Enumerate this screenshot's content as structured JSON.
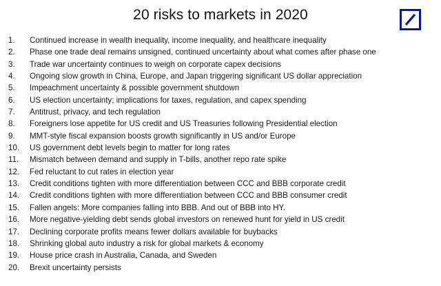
{
  "title": "20 risks to markets in 2020",
  "logo": {
    "icon": "deutsche-bank-logo",
    "color": "#0018a8"
  },
  "risks": [
    {
      "num": "1.",
      "text": "Continued increase in wealth inequality, income inequality, and healthcare inequality"
    },
    {
      "num": "2.",
      "text": "Phase one trade deal remains unsigned, continued uncertainty about what comes after phase one"
    },
    {
      "num": "3.",
      "text": "Trade war uncertainty continues to weigh on corporate capex decisions"
    },
    {
      "num": "4.",
      "text": "Ongoing slow growth in China, Europe, and Japan triggering significant US dollar appreciation"
    },
    {
      "num": "5.",
      "text": "Impeachment uncertainty & possible government shutdown"
    },
    {
      "num": "6.",
      "text": "US election uncertainty; implications for taxes, regulation, and capex spending"
    },
    {
      "num": "7.",
      "text": "Antitrust, privacy, and tech regulation"
    },
    {
      "num": "8.",
      "text": "Foreigners lose appetite for US credit and US Treasuries following Presidential election"
    },
    {
      "num": "9.",
      "text": "MMT-style fiscal expansion boosts growth significantly in US and/or Europe"
    },
    {
      "num": "10.",
      "text": "US government debt levels begin to matter for long rates"
    },
    {
      "num": "11.",
      "text": "Mismatch between demand and supply in T-bills, another repo rate spike"
    },
    {
      "num": "12.",
      "text": "Fed reluctant to cut rates in election year"
    },
    {
      "num": "13.",
      "text": "Credit conditions tighten with more differentiation between CCC and BBB corporate credit"
    },
    {
      "num": "14.",
      "text": "Credit conditions tighten with more differentiation between CCC and BBB consumer credit"
    },
    {
      "num": "15.",
      "text": "Fallen angels: More companies falling into BBB. And out of BBB into HY."
    },
    {
      "num": "16.",
      "text": "More negative-yielding debt sends global investors on renewed hunt for yield in US credit"
    },
    {
      "num": "17.",
      "text": "Declining corporate profits means fewer dollars available for buybacks"
    },
    {
      "num": "18.",
      "text": "Shrinking global auto industry a risk for global markets & economy"
    },
    {
      "num": "19.",
      "text": "House price crash in Australia, Canada, and Sweden"
    },
    {
      "num": "20.",
      "text": "Brexit uncertainty persists"
    }
  ]
}
